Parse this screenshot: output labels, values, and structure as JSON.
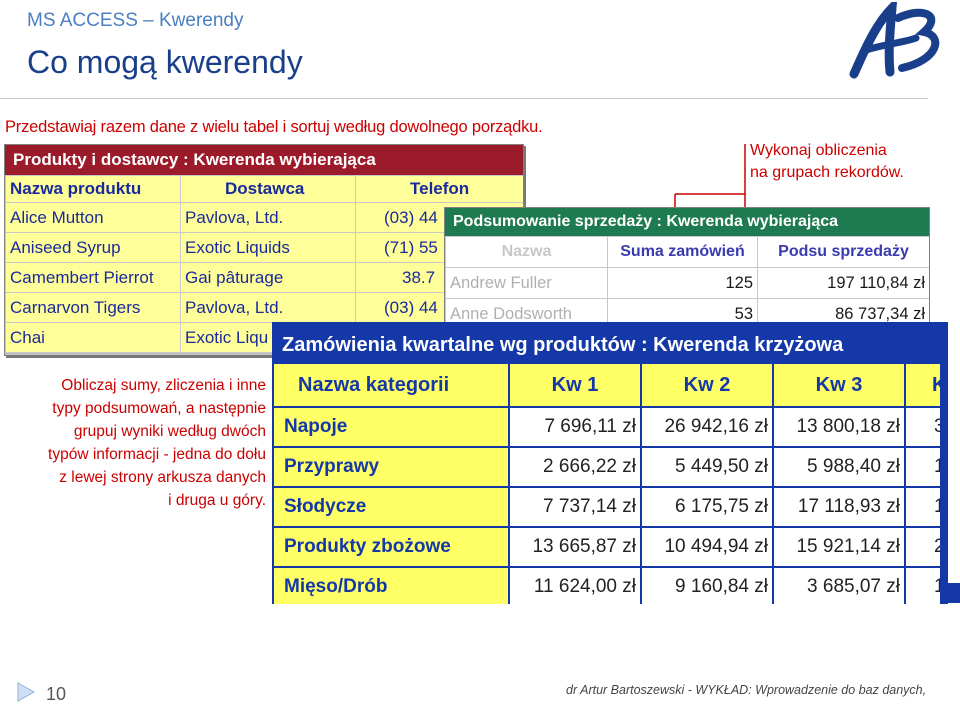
{
  "header": {
    "subtitle": "MS ACCESS – Kwerendy",
    "title": "Co mogą kwerendy"
  },
  "intro_text": "Przedstawiaj razem dane z wielu tabel i sortuj według dowolnego porządku.",
  "summary_note": [
    "Wykonaj obliczenia",
    "na grupach rekordów."
  ],
  "left_note": [
    "Obliczaj sumy, zliczenia i inne",
    "typy podsumowań, a następnie",
    "grupuj wyniki według dwóch",
    "typów informacji - jedna do dołu",
    "z lewej strony arkusza danych",
    "i druga u góry."
  ],
  "products_window": {
    "title": "Produkty i dostawcy : Kwerenda wybierająca",
    "headers": [
      "Nazwa produktu",
      "Dostawca",
      "Telefon"
    ],
    "rows": [
      [
        "Alice Mutton",
        "Pavlova, Ltd.",
        "(03) 44"
      ],
      [
        "Aniseed Syrup",
        "Exotic Liquids",
        "(71) 55"
      ],
      [
        "Camembert Pierrot",
        "Gai pâturage",
        "38.7"
      ],
      [
        "Carnarvon Tigers",
        "Pavlova, Ltd.",
        "(03) 44"
      ],
      [
        "Chai",
        "Exotic Liqu",
        ""
      ]
    ]
  },
  "sales_window": {
    "title": "Podsumowanie sprzedaży : Kwerenda wybierająca",
    "headers": [
      "Nazwa",
      "Suma zamówień",
      "Podsu sprzedaży"
    ],
    "rows": [
      [
        "Andrew Fuller",
        "125",
        "197 110,84 zł"
      ],
      [
        "Anne Dodsworth",
        "53",
        "86 737,34 zł"
      ]
    ]
  },
  "crosstab_window": {
    "title": "Zamówienia kwartalne wg produktów : Kwerenda krzyżowa",
    "headers": [
      "Nazwa kategorii",
      "Kw 1",
      "Kw 2",
      "Kw 3",
      "K"
    ],
    "rows": [
      [
        "Napoje",
        "7 696,11 zł",
        "26 942,16 zł",
        "13 800,18 zł",
        "3"
      ],
      [
        "Przyprawy",
        "2 666,22 zł",
        "5 449,50 zł",
        "5 988,40 zł",
        "1"
      ],
      [
        "Słodycze",
        "7 737,14 zł",
        "6 175,75 zł",
        "17 118,93 zł",
        "1"
      ],
      [
        "Produkty zbożowe",
        "13 665,87 zł",
        "10 494,94 zł",
        "15 921,14 zł",
        "2"
      ],
      [
        "Mięso/Drób",
        "11 624,00 zł",
        "9 160,84 zł",
        "3 685,07 zł",
        "1"
      ]
    ]
  },
  "footer": {
    "page_number": "10",
    "credit": "dr Artur Bartoszewski  - WYKŁAD: Wprowadzenie do baz danych,"
  },
  "colors": {
    "accent_blue": "#1438a8",
    "title_blue": "#1a3f8a",
    "red_text": "#cc0000",
    "products_titlebar": "#9c1b2b",
    "sales_titlebar": "#1e7a50",
    "cell_yellow": "#ffff99"
  },
  "icons": {
    "logo": "ab-logo",
    "page_marker": "triangle-arrow-icon"
  }
}
